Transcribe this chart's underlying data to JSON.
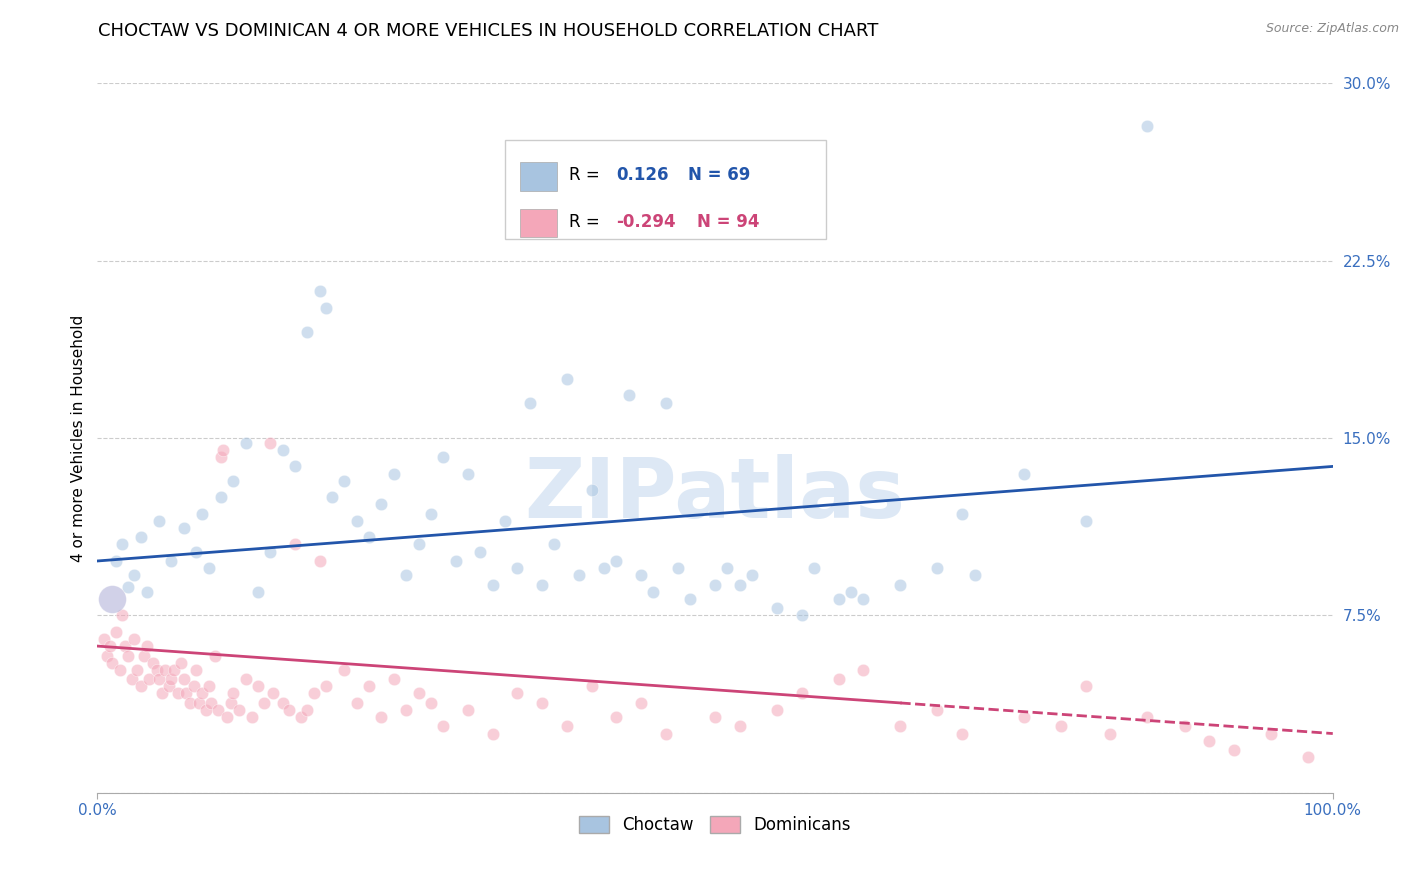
{
  "title": "CHOCTAW VS DOMINICAN 4 OR MORE VEHICLES IN HOUSEHOLD CORRELATION CHART",
  "source": "Source: ZipAtlas.com",
  "ylabel": "4 or more Vehicles in Household",
  "xlabel": "",
  "xlim": [
    0,
    100
  ],
  "ylim": [
    0,
    30
  ],
  "yticks": [
    0,
    7.5,
    15.0,
    22.5,
    30.0
  ],
  "xticks": [
    0,
    100
  ],
  "xticklabels": [
    "0.0%",
    "100.0%"
  ],
  "yticklabels": [
    "",
    "7.5%",
    "15.0%",
    "22.5%",
    "30.0%"
  ],
  "blue_R": 0.126,
  "blue_N": 69,
  "pink_R": -0.294,
  "pink_N": 94,
  "blue_color": "#a8c4e0",
  "pink_color": "#f4a7b9",
  "blue_line_color": "#2255aa",
  "pink_line_color": "#cc4477",
  "blue_scatter": [
    [
      1.5,
      9.8
    ],
    [
      2.0,
      10.5
    ],
    [
      2.5,
      8.7
    ],
    [
      3.0,
      9.2
    ],
    [
      3.5,
      10.8
    ],
    [
      4.0,
      8.5
    ],
    [
      5.0,
      11.5
    ],
    [
      6.0,
      9.8
    ],
    [
      7.0,
      11.2
    ],
    [
      8.0,
      10.2
    ],
    [
      8.5,
      11.8
    ],
    [
      9.0,
      9.5
    ],
    [
      10.0,
      12.5
    ],
    [
      11.0,
      13.2
    ],
    [
      12.0,
      14.8
    ],
    [
      13.0,
      8.5
    ],
    [
      14.0,
      10.2
    ],
    [
      15.0,
      14.5
    ],
    [
      16.0,
      13.8
    ],
    [
      17.0,
      19.5
    ],
    [
      18.0,
      21.2
    ],
    [
      18.5,
      20.5
    ],
    [
      19.0,
      12.5
    ],
    [
      20.0,
      13.2
    ],
    [
      21.0,
      11.5
    ],
    [
      22.0,
      10.8
    ],
    [
      23.0,
      12.2
    ],
    [
      24.0,
      13.5
    ],
    [
      25.0,
      9.2
    ],
    [
      26.0,
      10.5
    ],
    [
      27.0,
      11.8
    ],
    [
      28.0,
      14.2
    ],
    [
      29.0,
      9.8
    ],
    [
      30.0,
      13.5
    ],
    [
      31.0,
      10.2
    ],
    [
      32.0,
      8.8
    ],
    [
      33.0,
      11.5
    ],
    [
      34.0,
      9.5
    ],
    [
      35.0,
      16.5
    ],
    [
      36.0,
      8.8
    ],
    [
      37.0,
      10.5
    ],
    [
      38.0,
      17.5
    ],
    [
      39.0,
      9.2
    ],
    [
      40.0,
      12.8
    ],
    [
      41.0,
      9.5
    ],
    [
      42.0,
      9.8
    ],
    [
      43.0,
      16.8
    ],
    [
      44.0,
      9.2
    ],
    [
      45.0,
      8.5
    ],
    [
      46.0,
      16.5
    ],
    [
      47.0,
      9.5
    ],
    [
      48.0,
      8.2
    ],
    [
      50.0,
      8.8
    ],
    [
      51.0,
      9.5
    ],
    [
      52.0,
      8.8
    ],
    [
      53.0,
      9.2
    ],
    [
      55.0,
      7.8
    ],
    [
      57.0,
      7.5
    ],
    [
      58.0,
      9.5
    ],
    [
      60.0,
      8.2
    ],
    [
      61.0,
      8.5
    ],
    [
      62.0,
      8.2
    ],
    [
      65.0,
      8.8
    ],
    [
      68.0,
      9.5
    ],
    [
      70.0,
      11.8
    ],
    [
      71.0,
      9.2
    ],
    [
      75.0,
      13.5
    ],
    [
      80.0,
      11.5
    ],
    [
      85.0,
      28.2
    ]
  ],
  "pink_scatter": [
    [
      0.5,
      6.5
    ],
    [
      0.8,
      5.8
    ],
    [
      1.0,
      6.2
    ],
    [
      1.2,
      5.5
    ],
    [
      1.5,
      6.8
    ],
    [
      1.8,
      5.2
    ],
    [
      2.0,
      7.5
    ],
    [
      2.2,
      6.2
    ],
    [
      2.5,
      5.8
    ],
    [
      2.8,
      4.8
    ],
    [
      3.0,
      6.5
    ],
    [
      3.2,
      5.2
    ],
    [
      3.5,
      4.5
    ],
    [
      3.8,
      5.8
    ],
    [
      4.0,
      6.2
    ],
    [
      4.2,
      4.8
    ],
    [
      4.5,
      5.5
    ],
    [
      4.8,
      5.2
    ],
    [
      5.0,
      4.8
    ],
    [
      5.2,
      4.2
    ],
    [
      5.5,
      5.2
    ],
    [
      5.8,
      4.5
    ],
    [
      6.0,
      4.8
    ],
    [
      6.2,
      5.2
    ],
    [
      6.5,
      4.2
    ],
    [
      6.8,
      5.5
    ],
    [
      7.0,
      4.8
    ],
    [
      7.2,
      4.2
    ],
    [
      7.5,
      3.8
    ],
    [
      7.8,
      4.5
    ],
    [
      8.0,
      5.2
    ],
    [
      8.2,
      3.8
    ],
    [
      8.5,
      4.2
    ],
    [
      8.8,
      3.5
    ],
    [
      9.0,
      4.5
    ],
    [
      9.2,
      3.8
    ],
    [
      9.5,
      5.8
    ],
    [
      9.8,
      3.5
    ],
    [
      10.0,
      14.2
    ],
    [
      10.2,
      14.5
    ],
    [
      10.5,
      3.2
    ],
    [
      10.8,
      3.8
    ],
    [
      11.0,
      4.2
    ],
    [
      11.5,
      3.5
    ],
    [
      12.0,
      4.8
    ],
    [
      12.5,
      3.2
    ],
    [
      13.0,
      4.5
    ],
    [
      13.5,
      3.8
    ],
    [
      14.0,
      14.8
    ],
    [
      14.2,
      4.2
    ],
    [
      15.0,
      3.8
    ],
    [
      15.5,
      3.5
    ],
    [
      16.0,
      10.5
    ],
    [
      16.5,
      3.2
    ],
    [
      17.0,
      3.5
    ],
    [
      17.5,
      4.2
    ],
    [
      18.0,
      9.8
    ],
    [
      18.5,
      4.5
    ],
    [
      20.0,
      5.2
    ],
    [
      21.0,
      3.8
    ],
    [
      22.0,
      4.5
    ],
    [
      23.0,
      3.2
    ],
    [
      24.0,
      4.8
    ],
    [
      25.0,
      3.5
    ],
    [
      26.0,
      4.2
    ],
    [
      27.0,
      3.8
    ],
    [
      28.0,
      2.8
    ],
    [
      30.0,
      3.5
    ],
    [
      32.0,
      2.5
    ],
    [
      34.0,
      4.2
    ],
    [
      36.0,
      3.8
    ],
    [
      38.0,
      2.8
    ],
    [
      40.0,
      4.5
    ],
    [
      42.0,
      3.2
    ],
    [
      44.0,
      3.8
    ],
    [
      46.0,
      2.5
    ],
    [
      50.0,
      3.2
    ],
    [
      52.0,
      2.8
    ],
    [
      55.0,
      3.5
    ],
    [
      57.0,
      4.2
    ],
    [
      60.0,
      4.8
    ],
    [
      62.0,
      5.2
    ],
    [
      65.0,
      2.8
    ],
    [
      68.0,
      3.5
    ],
    [
      70.0,
      2.5
    ],
    [
      75.0,
      3.2
    ],
    [
      78.0,
      2.8
    ],
    [
      80.0,
      4.5
    ],
    [
      82.0,
      2.5
    ],
    [
      85.0,
      3.2
    ],
    [
      88.0,
      2.8
    ],
    [
      90.0,
      2.2
    ],
    [
      92.0,
      1.8
    ],
    [
      95.0,
      2.5
    ],
    [
      98.0,
      1.5
    ]
  ],
  "blue_line_y_start": 9.8,
  "blue_line_y_end": 13.8,
  "pink_line_y_start": 6.2,
  "pink_line_y_end": 2.5,
  "pink_solid_end_x": 65,
  "watermark_text": "ZIPatlas",
  "background_color": "#ffffff",
  "grid_color": "#cccccc",
  "title_fontsize": 13,
  "axis_label_fontsize": 11,
  "tick_fontsize": 11,
  "scatter_size": 80,
  "scatter_alpha": 0.55,
  "scatter_linewidth": 0.5
}
